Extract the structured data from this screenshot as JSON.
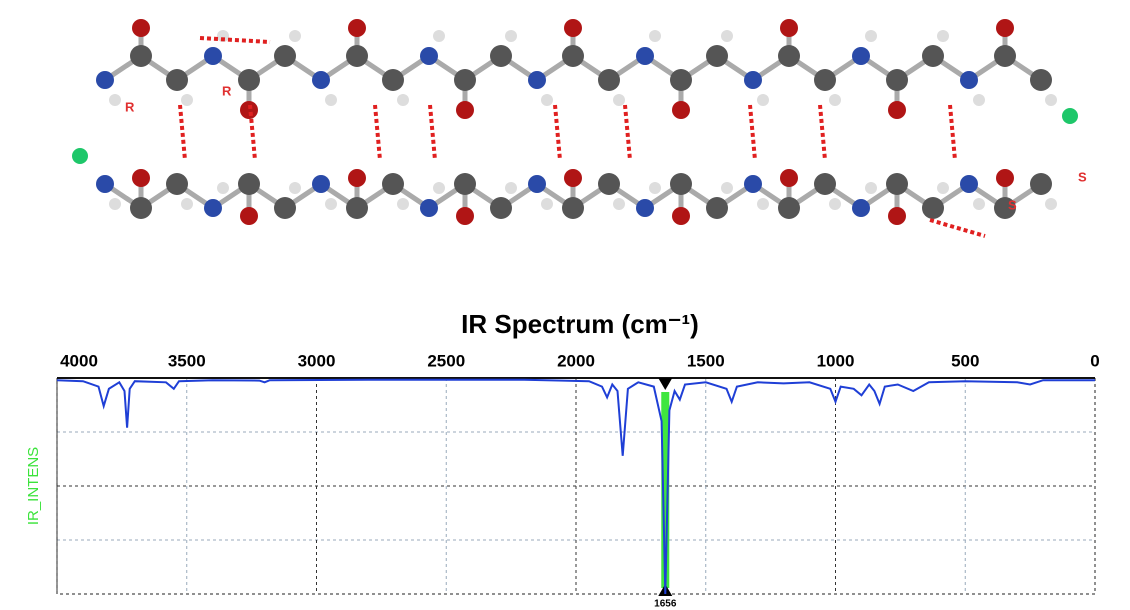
{
  "molecule": {
    "labels": [
      "R",
      "R",
      "S",
      "S"
    ]
  },
  "chart_data": {
    "type": "line",
    "title": "IR Spectrum (cm⁻¹)",
    "y_label": "IR_INTENS",
    "x": [
      4000,
      3900,
      3840,
      3820,
      3800,
      3760,
      3740,
      3730,
      3720,
      3700,
      3580,
      3550,
      3530,
      3400,
      3220,
      3200,
      3180,
      2800,
      2200,
      1950,
      1900,
      1880,
      1860,
      1840,
      1820,
      1800,
      1760,
      1700,
      1670,
      1656,
      1640,
      1620,
      1600,
      1580,
      1500,
      1420,
      1400,
      1380,
      1300,
      1200,
      1100,
      1020,
      1000,
      980,
      930,
      900,
      870,
      850,
      830,
      810,
      760,
      700,
      640,
      500,
      300,
      250,
      200,
      100,
      0
    ],
    "values": [
      0.01,
      0.015,
      0.04,
      0.13,
      0.05,
      0.02,
      0.06,
      0.23,
      0.05,
      0.015,
      0.02,
      0.05,
      0.015,
      0.01,
      0.012,
      0.02,
      0.01,
      0.008,
      0.008,
      0.015,
      0.04,
      0.09,
      0.03,
      0.06,
      0.36,
      0.05,
      0.02,
      0.04,
      0.2,
      1.0,
      0.15,
      0.06,
      0.1,
      0.03,
      0.02,
      0.05,
      0.11,
      0.04,
      0.02,
      0.025,
      0.02,
      0.05,
      0.11,
      0.04,
      0.05,
      0.08,
      0.03,
      0.06,
      0.12,
      0.04,
      0.03,
      0.06,
      0.02,
      0.015,
      0.02,
      0.03,
      0.01,
      0.01,
      0.01
    ],
    "color": "#1f3fd6",
    "xlim": [
      4000,
      0
    ],
    "xticks": [
      4000,
      3500,
      3000,
      2500,
      2000,
      1500,
      1000,
      500,
      0
    ],
    "ylim": [
      0,
      1
    ],
    "grid": true,
    "marker": 1656,
    "marker_color": "#3fe63f"
  }
}
